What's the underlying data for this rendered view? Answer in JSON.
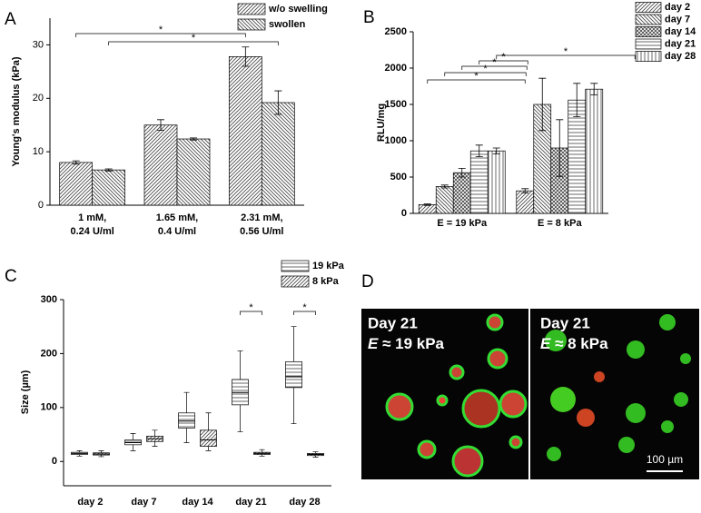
{
  "chart_data": [
    {
      "type": "bar",
      "panel": "A",
      "y_label": "Young's modulus (kPa)",
      "categories": [
        [
          "1  mM,",
          "0.24 U/ml"
        ],
        [
          "1.65 mM,",
          "0.4 U/ml"
        ],
        [
          "2.31 mM,",
          "0.56 U/ml"
        ]
      ],
      "series": [
        {
          "name": "w/o swelling",
          "color": "#444444",
          "hatch": "diagonal",
          "values": [
            8.0,
            15.0,
            27.8
          ],
          "errors": [
            0.3,
            1.0,
            1.8
          ]
        },
        {
          "name": "swollen",
          "color": "#444444",
          "hatch": "back-diagonal",
          "values": [
            6.6,
            12.4,
            19.2
          ],
          "errors": [
            0.2,
            0.2,
            2.2
          ]
        }
      ],
      "ylim": [
        0,
        35
      ],
      "yticks": [
        0,
        10,
        20,
        30
      ],
      "annotations": [
        "*",
        "*"
      ]
    },
    {
      "type": "bar",
      "panel": "B",
      "y_label": "RLU/mg",
      "categories": [
        [
          "E = 19 kPa"
        ],
        [
          "E = 8 kPa"
        ]
      ],
      "series": [
        {
          "name": "day 2",
          "color": "#444444",
          "hatch": "diagonal",
          "values": [
            120,
            310
          ],
          "errors": [
            10,
            30
          ]
        },
        {
          "name": "day 7",
          "color": "#444444",
          "hatch": "back-diagonal",
          "values": [
            370,
            1500
          ],
          "errors": [
            20,
            360
          ]
        },
        {
          "name": "day 14",
          "color": "#444444",
          "hatch": "cross",
          "values": [
            560,
            900
          ],
          "errors": [
            60,
            390
          ]
        },
        {
          "name": "day 21",
          "color": "#444444",
          "hatch": "horizontal",
          "values": [
            860,
            1560
          ],
          "errors": [
            80,
            230
          ]
        },
        {
          "name": "day 28",
          "color": "#444444",
          "hatch": "vertical",
          "values": [
            860,
            1710
          ],
          "errors": [
            40,
            80
          ]
        }
      ],
      "ylim": [
        0,
        2500
      ],
      "yticks": [
        0,
        500,
        1000,
        1500,
        2000,
        2500
      ],
      "annotations": [
        "*",
        "*",
        "*",
        "*",
        "*"
      ]
    },
    {
      "type": "box",
      "panel": "C",
      "y_label": "Size (µm)",
      "categories": [
        "day 2",
        "day 7",
        "day 14",
        "day 21",
        "day 28"
      ],
      "series": [
        {
          "name": "19 kPa",
          "color": "#444444",
          "hatch": "horizontal",
          "values": [
            {
              "min": 10,
              "q1": 13,
              "median": 15,
              "q3": 17,
              "max": 20
            },
            {
              "min": 20,
              "q1": 31,
              "median": 35,
              "q3": 40,
              "max": 52
            },
            {
              "min": 35,
              "q1": 62,
              "median": 75,
              "q3": 90,
              "max": 128
            },
            {
              "min": 55,
              "q1": 105,
              "median": 128,
              "q3": 152,
              "max": 205
            },
            {
              "min": 70,
              "q1": 137,
              "median": 157,
              "q3": 185,
              "max": 250
            }
          ]
        },
        {
          "name": "8 kPa",
          "color": "#444444",
          "hatch": "diagonal",
          "values": [
            {
              "min": 9,
              "q1": 12,
              "median": 14,
              "q3": 16,
              "max": 20
            },
            {
              "min": 28,
              "q1": 37,
              "median": 42,
              "q3": 47,
              "max": 58
            },
            {
              "min": 20,
              "q1": 28,
              "median": 40,
              "q3": 58,
              "max": 90
            },
            {
              "min": 10,
              "q1": 13,
              "median": 15,
              "q3": 17,
              "max": 22
            },
            {
              "min": 8,
              "q1": 11,
              "median": 13,
              "q3": 15,
              "max": 18
            }
          ]
        }
      ],
      "ylim": [
        -45,
        300
      ],
      "yticks": [
        0,
        100,
        200,
        300
      ],
      "annotations": [
        "*",
        "*"
      ]
    }
  ],
  "image_panel": {
    "panel": "D",
    "left": {
      "title": "Day 21",
      "symbol": "E",
      "value": "≈ 19 kPa"
    },
    "right": {
      "title": "Day 21",
      "symbol": "E",
      "value": "≈ 8 kPa"
    },
    "scale_bar": "100 µm"
  }
}
